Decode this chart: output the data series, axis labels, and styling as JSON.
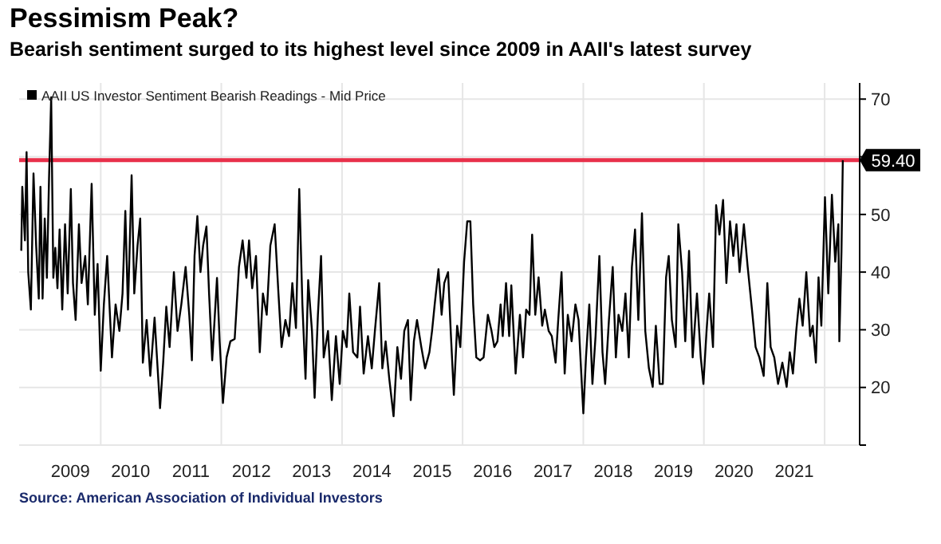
{
  "chart_data": {
    "type": "line",
    "title": "Pessimism Peak?",
    "subtitle": "Bearish sentiment surged to its highest level since 2009 in AAII's latest survey",
    "annotations": [
      "Source: American Association of Individual Investors"
    ],
    "x": [
      "2008-09-07",
      "2008-09-13",
      "2008-09-29",
      "2008-10-09",
      "2008-10-19",
      "2008-11-04",
      "2008-11-20",
      "2008-12-06",
      "2008-12-22",
      "2009-01-01",
      "2009-01-14",
      "2009-01-27",
      "2009-02-09",
      "2009-02-22",
      "2009-03-07",
      "2009-03-20",
      "2009-04-01",
      "2009-04-14",
      "2009-04-27",
      "2009-05-13",
      "2009-05-30",
      "2009-06-15",
      "2009-07-04",
      "2009-07-17",
      "2009-08-02",
      "2009-08-22",
      "2009-09-07",
      "2009-09-29",
      "2009-10-15",
      "2009-11-07",
      "2009-11-26",
      "2009-12-13",
      "2010-01-01",
      "2010-01-20",
      "2010-02-09",
      "2010-03-10",
      "2010-04-01",
      "2010-04-24",
      "2010-05-13",
      "2010-05-30",
      "2010-06-15",
      "2010-07-07",
      "2010-07-23",
      "2010-08-12",
      "2010-08-28",
      "2010-09-13",
      "2010-10-06",
      "2010-10-28",
      "2010-11-23",
      "2010-12-26",
      "2011-01-14",
      "2011-02-02",
      "2011-02-22",
      "2011-03-20",
      "2011-04-11",
      "2011-05-04",
      "2011-05-30",
      "2011-06-21",
      "2011-07-07",
      "2011-07-23",
      "2011-08-09",
      "2011-08-28",
      "2011-09-13",
      "2011-10-03",
      "2011-10-19",
      "2011-11-07",
      "2011-12-06",
      "2011-12-22",
      "2012-01-11",
      "2012-02-02",
      "2012-02-25",
      "2012-03-22",
      "2012-04-17",
      "2012-05-09",
      "2012-06-01",
      "2012-06-17",
      "2012-07-06",
      "2012-07-29",
      "2012-08-21",
      "2012-09-09",
      "2012-10-02",
      "2012-10-24",
      "2012-11-19",
      "2012-12-12",
      "2012-12-31",
      "2013-01-23",
      "2013-02-14",
      "2013-03-06",
      "2013-03-28",
      "2013-04-17",
      "2013-05-06",
      "2013-05-25",
      "2013-06-10",
      "2013-07-03",
      "2013-07-19",
      "2013-08-08",
      "2013-08-27",
      "2013-09-12",
      "2013-10-08",
      "2013-10-31",
      "2013-11-25",
      "2013-12-18",
      "2014-01-06",
      "2014-01-29",
      "2014-02-14",
      "2014-03-09",
      "2014-04-04",
      "2014-04-20",
      "2014-05-12",
      "2014-06-07",
      "2014-06-30",
      "2014-07-19",
      "2014-08-14",
      "2014-09-02",
      "2014-09-22",
      "2014-10-14",
      "2014-11-09",
      "2014-12-02",
      "2014-12-24",
      "2015-01-13",
      "2015-02-04",
      "2015-02-21",
      "2015-03-12",
      "2015-03-31",
      "2015-04-26",
      "2015-05-19",
      "2015-06-14",
      "2015-06-30",
      "2015-07-16",
      "2015-08-08",
      "2015-08-27",
      "2015-09-12",
      "2015-10-05",
      "2015-10-21",
      "2015-11-09",
      "2015-11-29",
      "2015-12-18",
      "2016-01-10",
      "2016-01-29",
      "2016-02-17",
      "2016-03-05",
      "2016-03-24",
      "2016-04-16",
      "2016-05-07",
      "2016-06-02",
      "2016-06-24",
      "2016-07-11",
      "2016-07-30",
      "2016-08-18",
      "2016-08-31",
      "2016-09-20",
      "2016-10-09",
      "2016-10-22",
      "2016-11-17",
      "2016-12-13",
      "2017-01-01",
      "2017-01-20",
      "2017-02-09",
      "2017-02-25",
      "2017-03-16",
      "2017-04-05",
      "2017-04-27",
      "2017-05-13",
      "2017-06-05",
      "2017-06-24",
      "2017-07-17",
      "2017-08-02",
      "2017-08-22",
      "2017-09-10",
      "2017-09-29",
      "2017-10-22",
      "2017-11-14",
      "2017-12-03",
      "2017-12-16",
      "2018-01-01",
      "2018-01-17",
      "2018-02-06",
      "2018-02-25",
      "2018-03-16",
      "2018-04-08",
      "2018-04-27",
      "2018-05-13",
      "2018-06-05",
      "2018-06-28",
      "2018-07-17",
      "2018-08-02",
      "2018-08-25",
      "2018-09-13",
      "2018-10-03",
      "2018-10-22",
      "2018-11-10",
      "2018-11-30",
      "2018-12-22",
      "2019-01-11",
      "2019-02-02",
      "2019-02-25",
      "2019-03-16",
      "2019-04-08",
      "2019-04-27",
      "2019-05-17",
      "2019-06-02",
      "2019-06-21",
      "2019-07-14",
      "2019-07-30",
      "2019-08-22",
      "2019-09-10",
      "2019-10-03",
      "2019-10-25",
      "2019-11-20",
      "2019-12-13",
      "2019-12-29",
      "2020-01-17",
      "2020-02-02",
      "2020-02-25",
      "2020-03-15",
      "2020-04-04",
      "2020-04-26",
      "2020-05-16",
      "2020-06-07",
      "2020-06-27",
      "2020-07-16",
      "2020-08-04",
      "2020-08-30",
      "2020-09-22",
      "2020-10-18",
      "2020-11-09",
      "2020-12-02",
      "2020-12-28",
      "2021-01-19",
      "2021-02-08",
      "2021-03-02",
      "2021-03-25",
      "2021-04-20",
      "2021-05-16",
      "2021-06-04",
      "2021-06-23",
      "2021-07-13",
      "2021-08-01",
      "2021-08-21",
      "2021-09-12",
      "2021-10-05",
      "2021-10-21",
      "2021-11-09",
      "2021-11-25",
      "2021-12-12",
      "2022-01-03",
      "2022-01-23",
      "2022-02-14",
      "2022-03-06",
      "2022-03-25",
      "2022-03-31",
      "2022-04-13",
      "2022-04-21"
    ],
    "series": [
      {
        "name": "AAII US Investor Sentiment Bearish Readings - Mid Price",
        "color": "#000000",
        "values": [
          43.7,
          54.8,
          45.5,
          60.8,
          40,
          33.5,
          57.1,
          44.6,
          35.4,
          54.8,
          35.4,
          49.3,
          39,
          56.2,
          70.3,
          39,
          44.2,
          37.2,
          47.4,
          33.5,
          48.3,
          36.3,
          54.4,
          38.1,
          31.7,
          48.3,
          38.1,
          42.8,
          34.4,
          55.3,
          32.6,
          41.4,
          22.9,
          34.4,
          42.8,
          25.2,
          34.4,
          29.8,
          36.3,
          50.6,
          33.5,
          56.8,
          36.3,
          44.6,
          49.3,
          24.3,
          31.7,
          22,
          32.1,
          16.4,
          24.3,
          34,
          27,
          40,
          29.8,
          34.4,
          40.9,
          32.6,
          24.7,
          42.8,
          49.7,
          40,
          44.6,
          47.9,
          36.3,
          24.7,
          39,
          28,
          17.3,
          25.2,
          28,
          28.4,
          40.9,
          45.5,
          39,
          45.5,
          37.2,
          42.8,
          26.1,
          36.3,
          32.6,
          44.6,
          48.3,
          36.3,
          27,
          31.7,
          28.9,
          38.1,
          30.3,
          54.4,
          34.4,
          21.5,
          38.6,
          29.8,
          18.2,
          32.6,
          42.8,
          25.2,
          29.8,
          17.8,
          28.9,
          20.6,
          29.8,
          27,
          36.3,
          26.1,
          25.2,
          34,
          22.4,
          28.9,
          23.3,
          29.8,
          38.1,
          23.3,
          28,
          21.5,
          15,
          27,
          21.5,
          29.8,
          31.7,
          17.8,
          28,
          31.7,
          27,
          23.3,
          26.1,
          29.8,
          34.4,
          40.5,
          32.6,
          38.1,
          40,
          29.8,
          18.7,
          30.7,
          27,
          41.8,
          48.8,
          48.8,
          34.4,
          25.2,
          24.7,
          25.2,
          32.6,
          29.8,
          27,
          28,
          34.4,
          28.9,
          38.1,
          28.9,
          37.7,
          22.4,
          32.6,
          25.2,
          33.5,
          32.6,
          46.5,
          32.6,
          39.1,
          30.7,
          33.5,
          29.8,
          28.9,
          24.3,
          31.7,
          40,
          22.4,
          32.6,
          28,
          34.4,
          31.7,
          24.3,
          15.5,
          25.2,
          34.4,
          20.6,
          28.9,
          42.8,
          26.1,
          20.6,
          31.7,
          40.9,
          25.2,
          32.6,
          29.8,
          36.3,
          25.2,
          40.9,
          47.4,
          31.7,
          50.2,
          29.8,
          23.3,
          20.1,
          30.7,
          20.6,
          20.6,
          39.1,
          42.8,
          31.7,
          27,
          48.3,
          40,
          28,
          43.7,
          25.2,
          36.3,
          25.2,
          20.6,
          29.8,
          36.3,
          27,
          51.6,
          46.5,
          52.5,
          38.1,
          48.8,
          42.8,
          48.3,
          40,
          48.3,
          40.9,
          33.5,
          27,
          25.2,
          22,
          38.1,
          27,
          25.2,
          20.6,
          24.3,
          20.1,
          26.1,
          22.4,
          29.8,
          35.4,
          30.7,
          40,
          28.9,
          30.7,
          24.3,
          39.1,
          30.7,
          53,
          36.3,
          53.4,
          41.8,
          48.3,
          28,
          43.7,
          59.4
        ]
      }
    ],
    "xlim": [
      "2008-08-25",
      "2022-08-01"
    ],
    "xticks": [
      {
        "value": "2009-07-01",
        "label": "2009"
      },
      {
        "value": "2010-01-01",
        "label": null
      },
      {
        "value": "2010-07-01",
        "label": "2010"
      },
      {
        "value": "2011-07-01",
        "label": "2011"
      },
      {
        "value": "2012-01-01",
        "label": null
      },
      {
        "value": "2012-07-01",
        "label": "2012"
      },
      {
        "value": "2013-07-01",
        "label": "2013"
      },
      {
        "value": "2014-01-01",
        "label": null
      },
      {
        "value": "2014-07-01",
        "label": "2014"
      },
      {
        "value": "2015-07-01",
        "label": "2015"
      },
      {
        "value": "2016-01-01",
        "label": null
      },
      {
        "value": "2016-07-01",
        "label": "2016"
      },
      {
        "value": "2017-07-01",
        "label": "2017"
      },
      {
        "value": "2018-01-01",
        "label": null
      },
      {
        "value": "2018-07-01",
        "label": "2018"
      },
      {
        "value": "2019-07-01",
        "label": "2019"
      },
      {
        "value": "2020-01-01",
        "label": null
      },
      {
        "value": "2020-07-01",
        "label": "2020"
      },
      {
        "value": "2021-07-01",
        "label": "2021"
      },
      {
        "value": "2022-01-01",
        "label": null
      }
    ],
    "ylim": [
      10,
      72.8
    ],
    "yticks": [
      {
        "value": 10,
        "label": null
      },
      20,
      30,
      40,
      50,
      {
        "value": 60,
        "label": null
      },
      70
    ],
    "ref_lines": [
      {
        "axis": "y",
        "value": 59.4,
        "label": "59.40",
        "color": "#e8304a"
      }
    ],
    "grid": true,
    "legend": "top left"
  }
}
